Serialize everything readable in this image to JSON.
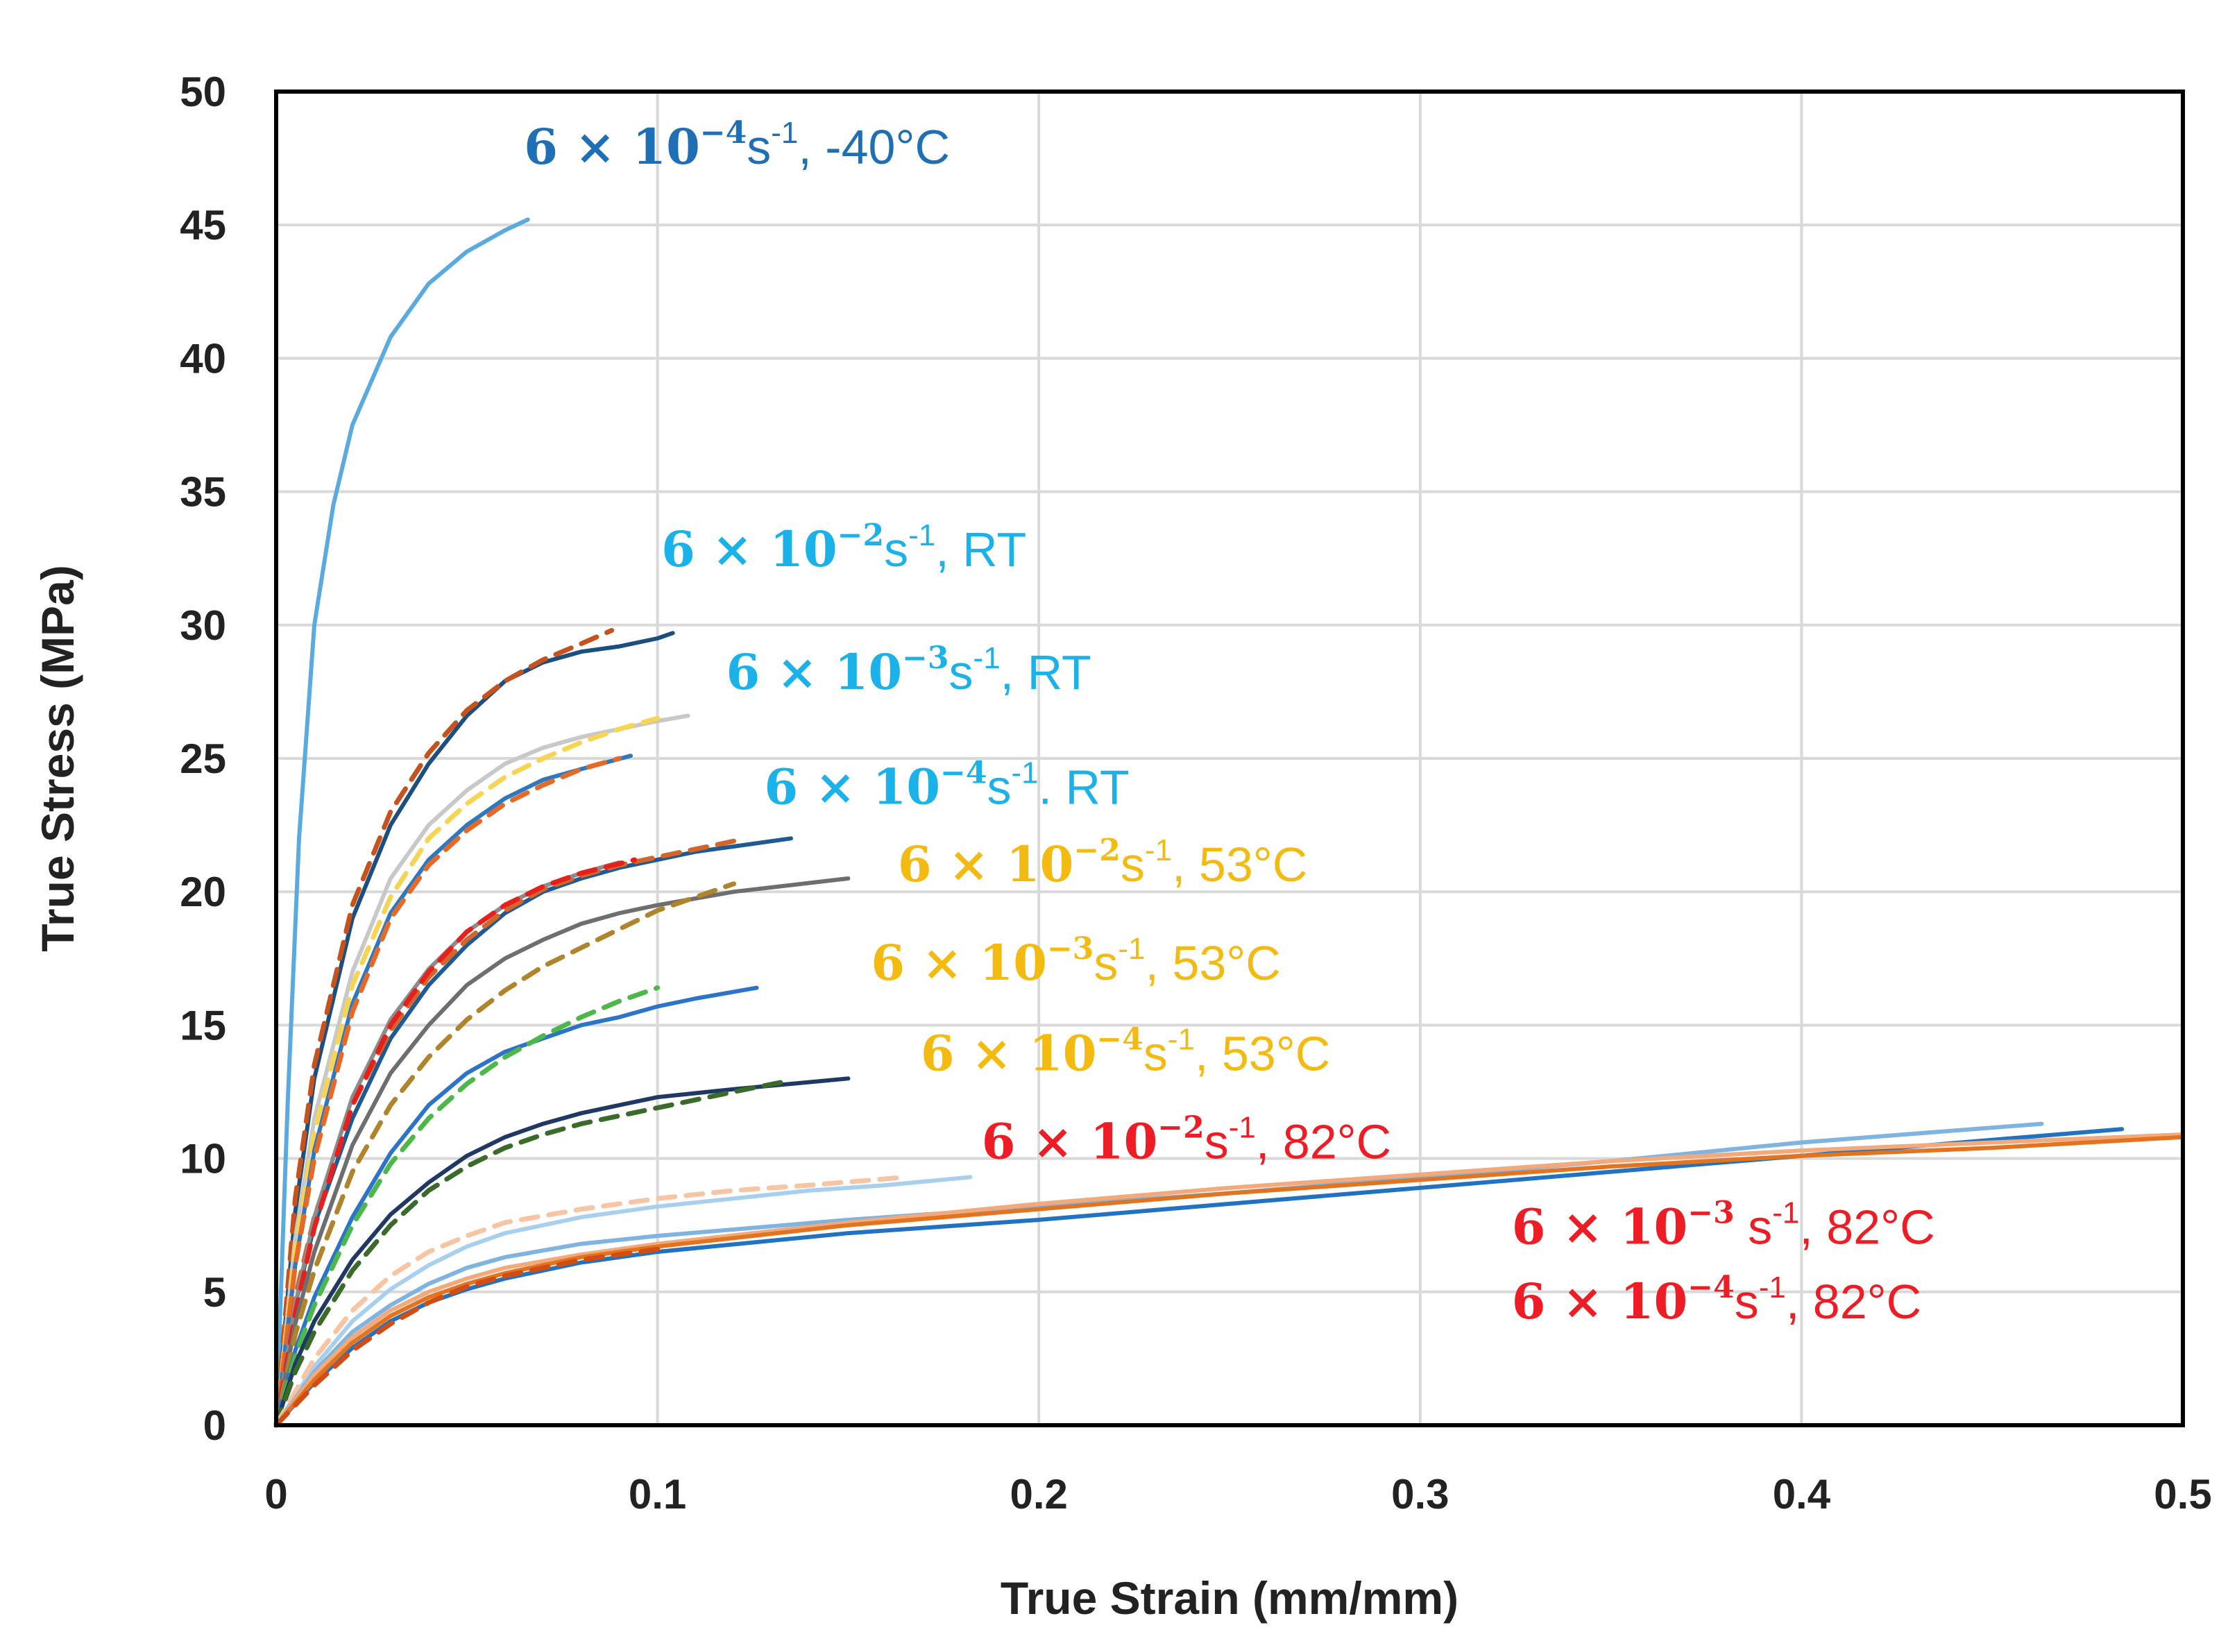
{
  "chart_data": {
    "type": "line",
    "title": "",
    "xlabel": "True Strain (mm/mm)",
    "ylabel": "True Stress (MPa)",
    "xlim": [
      0,
      0.5
    ],
    "ylim": [
      0,
      50
    ],
    "grid": true,
    "x_ticks": [
      "0",
      "0.1",
      "0.2",
      "0.3",
      "0.4",
      "0.5"
    ],
    "y_ticks": [
      "0",
      "5",
      "10",
      "15",
      "20",
      "25",
      "30",
      "35",
      "40",
      "45",
      "50"
    ],
    "annotations": [
      {
        "rate_mantissa": "6",
        "rate_base": "10",
        "rate_exp": "−4",
        "unit": "s",
        "unit_exp": "-1",
        "sep": ", ",
        "condition": "-40°C",
        "color": "#1f6fb5",
        "x": 0.065,
        "y": 47.3
      },
      {
        "rate_mantissa": "6",
        "rate_base": "10",
        "rate_exp": "−2",
        "unit": "s",
        "unit_exp": "-1",
        "sep": ", ",
        "condition": "RT",
        "color": "#1ab2e8",
        "x": 0.101,
        "y": 32.2
      },
      {
        "rate_mantissa": "6",
        "rate_base": "10",
        "rate_exp": "−3",
        "unit": "s",
        "unit_exp": "-1",
        "sep": ", ",
        "condition": "RT",
        "color": "#1ab2e8",
        "x": 0.118,
        "y": 27.6
      },
      {
        "rate_mantissa": "6",
        "rate_base": "10",
        "rate_exp": "−4",
        "unit": "s",
        "unit_exp": "-1",
        "sep": ". ",
        "condition": "RT",
        "color": "#1ab2e8",
        "x": 0.128,
        "y": 23.3
      },
      {
        "rate_mantissa": "6",
        "rate_base": "10",
        "rate_exp": "−2",
        "unit": "s",
        "unit_exp": "-1",
        "sep": ", ",
        "condition": "53°C",
        "color": "#f3bb12",
        "x": 0.163,
        "y": 20.4
      },
      {
        "rate_mantissa": "6",
        "rate_base": "10",
        "rate_exp": "−3",
        "unit": "s",
        "unit_exp": "-1",
        "sep": ", ",
        "condition": "53°C",
        "color": "#f3bb12",
        "x": 0.156,
        "y": 16.7
      },
      {
        "rate_mantissa": "6",
        "rate_base": "10",
        "rate_exp": "−4",
        "unit": "s",
        "unit_exp": "-1",
        "sep": ", ",
        "condition": "53°C",
        "color": "#f3bb12",
        "x": 0.169,
        "y": 13.3
      },
      {
        "rate_mantissa": "6",
        "rate_base": "10",
        "rate_exp": "−2",
        "unit": "s",
        "unit_exp": "-1",
        "sep": ", ",
        "condition": "82°C",
        "color": "#ee1c24",
        "x": 0.185,
        "y": 10.0
      },
      {
        "rate_mantissa": "6",
        "rate_base": "10",
        "rate_exp": "−3",
        "unit": " s",
        "unit_exp": "-1",
        "sep": ", ",
        "condition": "82°C",
        "color": "#ee1c24",
        "x": 0.324,
        "y": 6.8
      },
      {
        "rate_mantissa": "6",
        "rate_base": "10",
        "rate_exp": "−4",
        "unit": "s",
        "unit_exp": "-1",
        "sep": ", ",
        "condition": "82°C",
        "color": "#ee1c24",
        "x": 0.324,
        "y": 4.0
      }
    ],
    "series": [
      {
        "style": "solid",
        "color": "#5aaae0",
        "x": [
          0,
          0.001,
          0.003,
          0.006,
          0.01,
          0.015,
          0.02,
          0.03,
          0.04,
          0.05,
          0.06,
          0.066
        ],
        "y": [
          0,
          4,
          12,
          22,
          30,
          34.5,
          37.5,
          40.8,
          42.8,
          44.0,
          44.8,
          45.2
        ]
      },
      {
        "style": "solid",
        "color": "#1c4f7f",
        "x": [
          0,
          0.005,
          0.01,
          0.02,
          0.03,
          0.04,
          0.05,
          0.06,
          0.07,
          0.08,
          0.09,
          0.1,
          0.104
        ],
        "y": [
          0,
          8,
          13,
          19,
          22.5,
          24.8,
          26.6,
          27.9,
          28.6,
          29.0,
          29.2,
          29.5,
          29.7
        ]
      },
      {
        "style": "dashed",
        "color": "#c6521e",
        "x": [
          0,
          0.005,
          0.01,
          0.02,
          0.03,
          0.04,
          0.05,
          0.06,
          0.07,
          0.08,
          0.088
        ],
        "y": [
          0,
          8.5,
          13.5,
          19.5,
          23,
          25.2,
          26.8,
          27.9,
          28.7,
          29.3,
          29.8
        ]
      },
      {
        "style": "solid",
        "color": "#c8c8c8",
        "x": [
          0,
          0.005,
          0.01,
          0.02,
          0.03,
          0.04,
          0.05,
          0.06,
          0.07,
          0.08,
          0.09,
          0.1,
          0.108
        ],
        "y": [
          0,
          7,
          11.5,
          17,
          20.5,
          22.5,
          23.8,
          24.8,
          25.4,
          25.8,
          26.1,
          26.4,
          26.6
        ]
      },
      {
        "style": "dashed",
        "color": "#f6d555",
        "x": [
          0,
          0.005,
          0.01,
          0.02,
          0.03,
          0.04,
          0.05,
          0.06,
          0.07,
          0.08,
          0.09,
          0.1
        ],
        "y": [
          0,
          6.5,
          11,
          16.5,
          19.8,
          22,
          23.3,
          24.3,
          25,
          25.6,
          26.1,
          26.5
        ]
      },
      {
        "style": "solid",
        "color": "#2e78c0",
        "x": [
          0,
          0.005,
          0.01,
          0.02,
          0.03,
          0.04,
          0.05,
          0.06,
          0.07,
          0.08,
          0.093
        ],
        "y": [
          0,
          6,
          10.3,
          15.8,
          19.2,
          21.2,
          22.5,
          23.5,
          24.2,
          24.6,
          25.1
        ]
      },
      {
        "style": "dashed",
        "color": "#e56a28",
        "x": [
          0,
          0.005,
          0.01,
          0.02,
          0.03,
          0.04,
          0.05,
          0.06,
          0.07,
          0.08,
          0.09
        ],
        "y": [
          0,
          6,
          10,
          15.5,
          19,
          21,
          22.3,
          23.3,
          24,
          24.6,
          25
        ]
      },
      {
        "style": "solid",
        "color": "#1f5a93",
        "x": [
          0,
          0.005,
          0.01,
          0.02,
          0.03,
          0.04,
          0.05,
          0.06,
          0.07,
          0.08,
          0.09,
          0.1,
          0.11,
          0.12,
          0.135
        ],
        "y": [
          0,
          4.5,
          7.5,
          11.5,
          14.5,
          16.5,
          18,
          19.2,
          20,
          20.5,
          20.9,
          21.2,
          21.5,
          21.7,
          22.0
        ]
      },
      {
        "style": "dashed",
        "color": "#d1652a",
        "x": [
          0,
          0.005,
          0.01,
          0.02,
          0.03,
          0.04,
          0.05,
          0.06,
          0.07,
          0.08,
          0.09,
          0.1,
          0.11,
          0.12
        ],
        "y": [
          0,
          4.8,
          7.8,
          12,
          14.8,
          16.8,
          18.2,
          19.3,
          20.1,
          20.6,
          21,
          21.3,
          21.6,
          21.9
        ]
      },
      {
        "style": "solid",
        "color": "#8c8c8c",
        "x": [
          0,
          0.005,
          0.01,
          0.02,
          0.03,
          0.04,
          0.05,
          0.06,
          0.07,
          0.08,
          0.09
        ],
        "y": [
          0,
          4.5,
          7.8,
          12.3,
          15.2,
          17.1,
          18.5,
          19.5,
          20.2,
          20.7,
          21.1
        ]
      },
      {
        "style": "dashed",
        "color": "#e8201c",
        "x": [
          0,
          0.005,
          0.01,
          0.02,
          0.03,
          0.04,
          0.05,
          0.06,
          0.07,
          0.08,
          0.094
        ],
        "y": [
          0,
          4.2,
          7.4,
          12,
          15,
          17,
          18.5,
          19.5,
          20.2,
          20.7,
          21.2
        ]
      },
      {
        "style": "solid",
        "color": "#6e6e6e",
        "x": [
          0,
          0.005,
          0.01,
          0.02,
          0.03,
          0.04,
          0.05,
          0.06,
          0.07,
          0.08,
          0.09,
          0.1,
          0.12,
          0.15
        ],
        "y": [
          0,
          3.8,
          6.5,
          10.5,
          13.2,
          15,
          16.5,
          17.5,
          18.2,
          18.8,
          19.2,
          19.5,
          20,
          20.5
        ]
      },
      {
        "style": "dashed",
        "color": "#b0842a",
        "x": [
          0,
          0.005,
          0.01,
          0.02,
          0.03,
          0.04,
          0.05,
          0.06,
          0.07,
          0.08,
          0.09,
          0.1,
          0.11,
          0.12
        ],
        "y": [
          0,
          3.4,
          5.8,
          9.5,
          12,
          13.8,
          15.2,
          16.3,
          17.2,
          17.9,
          18.6,
          19.3,
          19.8,
          20.3
        ]
      },
      {
        "style": "solid",
        "color": "#2b74c8",
        "x": [
          0,
          0.005,
          0.01,
          0.02,
          0.03,
          0.04,
          0.05,
          0.06,
          0.07,
          0.08,
          0.09,
          0.1,
          0.11,
          0.126
        ],
        "y": [
          0,
          2.8,
          4.8,
          7.8,
          10.2,
          12,
          13.2,
          14,
          14.5,
          15,
          15.3,
          15.7,
          16,
          16.4
        ]
      },
      {
        "style": "dashed",
        "color": "#4db84a",
        "x": [
          0,
          0.005,
          0.01,
          0.02,
          0.03,
          0.04,
          0.05,
          0.06,
          0.07,
          0.08,
          0.09,
          0.1
        ],
        "y": [
          0,
          2.6,
          4.5,
          7.5,
          9.8,
          11.5,
          12.8,
          13.8,
          14.6,
          15.3,
          15.9,
          16.4
        ]
      },
      {
        "style": "solid",
        "color": "#1f3864",
        "x": [
          0,
          0.005,
          0.01,
          0.02,
          0.03,
          0.04,
          0.05,
          0.06,
          0.07,
          0.08,
          0.09,
          0.1,
          0.12,
          0.15
        ],
        "y": [
          0,
          2.3,
          3.9,
          6.2,
          7.9,
          9.1,
          10.1,
          10.8,
          11.3,
          11.7,
          12,
          12.3,
          12.6,
          13.0
        ]
      },
      {
        "style": "dashed",
        "color": "#3a6b2a",
        "x": [
          0,
          0.005,
          0.01,
          0.02,
          0.03,
          0.04,
          0.05,
          0.06,
          0.07,
          0.08,
          0.09,
          0.1,
          0.12,
          0.134
        ],
        "y": [
          0,
          2,
          3.5,
          5.8,
          7.5,
          8.8,
          9.7,
          10.4,
          10.9,
          11.3,
          11.6,
          11.9,
          12.5,
          12.9
        ]
      },
      {
        "style": "solid",
        "color": "#a9cfee",
        "x": [
          0,
          0.01,
          0.02,
          0.03,
          0.04,
          0.05,
          0.06,
          0.08,
          0.1,
          0.12,
          0.14,
          0.16,
          0.182
        ],
        "y": [
          0,
          2.2,
          3.9,
          5.1,
          6,
          6.7,
          7.2,
          7.8,
          8.2,
          8.5,
          8.8,
          9.0,
          9.3
        ]
      },
      {
        "style": "dashed",
        "color": "#f7c5a3",
        "x": [
          0,
          0.01,
          0.02,
          0.03,
          0.04,
          0.05,
          0.06,
          0.08,
          0.1,
          0.12,
          0.14,
          0.165
        ],
        "y": [
          0,
          2.5,
          4.3,
          5.6,
          6.5,
          7.1,
          7.6,
          8.1,
          8.5,
          8.8,
          9.0,
          9.3
        ]
      },
      {
        "style": "solid",
        "color": "#7fb3e0",
        "x": [
          0,
          0.01,
          0.02,
          0.03,
          0.04,
          0.05,
          0.06,
          0.08,
          0.1,
          0.15,
          0.2,
          0.25,
          0.3,
          0.35,
          0.4,
          0.463
        ],
        "y": [
          0,
          2,
          3.5,
          4.5,
          5.3,
          5.9,
          6.3,
          6.8,
          7.1,
          7.7,
          8.2,
          8.7,
          9.3,
          9.9,
          10.6,
          11.3
        ]
      },
      {
        "style": "solid",
        "color": "#2173c1",
        "x": [
          0,
          0.01,
          0.02,
          0.03,
          0.04,
          0.05,
          0.06,
          0.08,
          0.1,
          0.15,
          0.2,
          0.25,
          0.3,
          0.35,
          0.4,
          0.45,
          0.484
        ],
        "y": [
          0,
          1.6,
          2.9,
          3.9,
          4.6,
          5.1,
          5.5,
          6.1,
          6.5,
          7.2,
          7.7,
          8.3,
          8.9,
          9.5,
          10.1,
          10.7,
          11.1
        ]
      },
      {
        "style": "solid",
        "color": "#f4a97a",
        "x": [
          0,
          0.01,
          0.02,
          0.03,
          0.04,
          0.05,
          0.06,
          0.08,
          0.1,
          0.15,
          0.2,
          0.25,
          0.3,
          0.35,
          0.4,
          0.45,
          0.5
        ],
        "y": [
          0,
          1.9,
          3.3,
          4.3,
          5,
          5.5,
          5.9,
          6.4,
          6.8,
          7.6,
          8.3,
          8.9,
          9.4,
          9.9,
          10.3,
          10.6,
          10.9
        ]
      },
      {
        "style": "solid",
        "color": "#e2741f",
        "x": [
          0,
          0.01,
          0.02,
          0.03,
          0.04,
          0.05,
          0.06,
          0.08,
          0.1,
          0.15,
          0.2,
          0.25,
          0.3,
          0.35,
          0.4,
          0.45,
          0.5
        ],
        "y": [
          0,
          1.7,
          3.1,
          4.1,
          4.8,
          5.3,
          5.7,
          6.3,
          6.7,
          7.5,
          8.1,
          8.7,
          9.2,
          9.7,
          10.1,
          10.4,
          10.8
        ]
      },
      {
        "style": "dashed",
        "color": "#d14d14",
        "x": [
          0,
          0.01,
          0.02,
          0.03,
          0.04,
          0.05,
          0.06,
          0.08,
          0.1
        ],
        "y": [
          0,
          1.5,
          2.8,
          3.8,
          4.6,
          5.2,
          5.6,
          6.2,
          6.6
        ]
      }
    ]
  }
}
